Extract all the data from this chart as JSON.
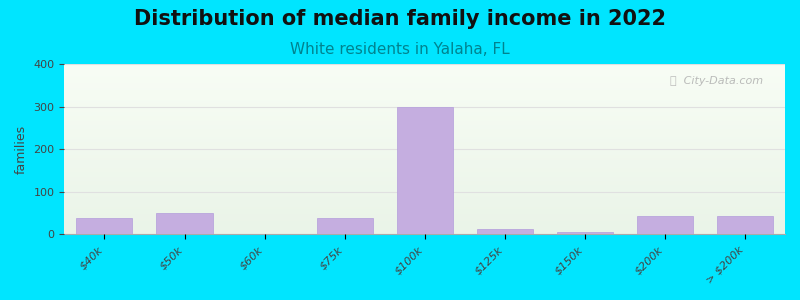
{
  "title": "Distribution of median family income in 2022",
  "subtitle": "White residents in Yalaha, FL",
  "ylabel": "families",
  "categories": [
    "$40k",
    "$50k",
    "$60k",
    "$75k",
    "$100k",
    "$125k",
    "$150k",
    "$200k",
    "> $200k"
  ],
  "values": [
    38,
    50,
    0,
    38,
    300,
    12,
    5,
    42,
    42
  ],
  "bar_color": "#c5aee0",
  "bar_edge_color": "#b39ddb",
  "background_outer": "#00e5ff",
  "title_fontsize": 15,
  "subtitle_fontsize": 11,
  "subtitle_color": "#00838f",
  "ylabel_fontsize": 9,
  "tick_fontsize": 8,
  "ylim": [
    0,
    400
  ],
  "yticks": [
    0,
    100,
    200,
    300,
    400
  ],
  "watermark_text": "ⓘ  City-Data.com",
  "grid_color": "#e0e0e0"
}
